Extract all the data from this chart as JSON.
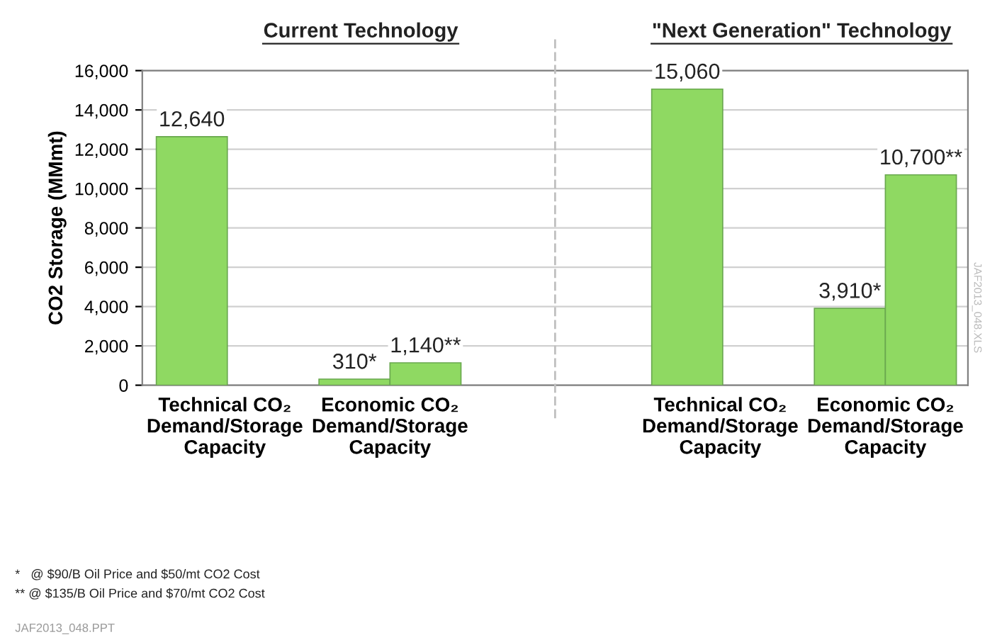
{
  "chart_data": {
    "type": "bar",
    "ylabel": "CO2 Storage (MMmt)",
    "categories": [
      "Technical CO₂\nDemand/Storage\nCapacity",
      "Economic CO₂\nDemand/Storage\nCapacity",
      null,
      "Technical CO₂\nDemand/Storage\nCapacity",
      "Economic CO₂\nDemand/Storage\nCapacity"
    ],
    "series": [
      {
        "color": "#8fd962",
        "values": [
          12640,
          310,
          null,
          15060,
          3910
        ],
        "value_labels": [
          "12,640",
          "310*",
          null,
          "15,060",
          "3,910*"
        ]
      },
      {
        "color": "#8fd962",
        "values": [
          null,
          1140,
          null,
          null,
          10700
        ],
        "value_labels": [
          null,
          "1,140**",
          null,
          null,
          "10,700**"
        ]
      }
    ],
    "ylim": [
      0,
      16000
    ],
    "yticks": [
      {
        "value": 0,
        "label": "0"
      },
      {
        "value": 2000,
        "label": "2,000"
      },
      {
        "value": 4000,
        "label": "4,000"
      },
      {
        "value": 6000,
        "label": "6,000"
      },
      {
        "value": 8000,
        "label": "8,000"
      },
      {
        "value": 10000,
        "label": "10,000"
      },
      {
        "value": 12000,
        "label": "12,000"
      },
      {
        "value": 14000,
        "label": "14,000"
      },
      {
        "value": 16000,
        "label": "16,000"
      }
    ],
    "grid": "y",
    "legend": false,
    "annotations": [
      "Current Technology",
      "\"Next Generation\" Technology",
      "*   @ $90/B Oil Price and $50/mt CO2 Cost",
      "** @ $135/B Oil Price and $70/mt CO2 Cost",
      "JAF2013_048.PPT",
      "JAF2013_048.XLS"
    ]
  }
}
